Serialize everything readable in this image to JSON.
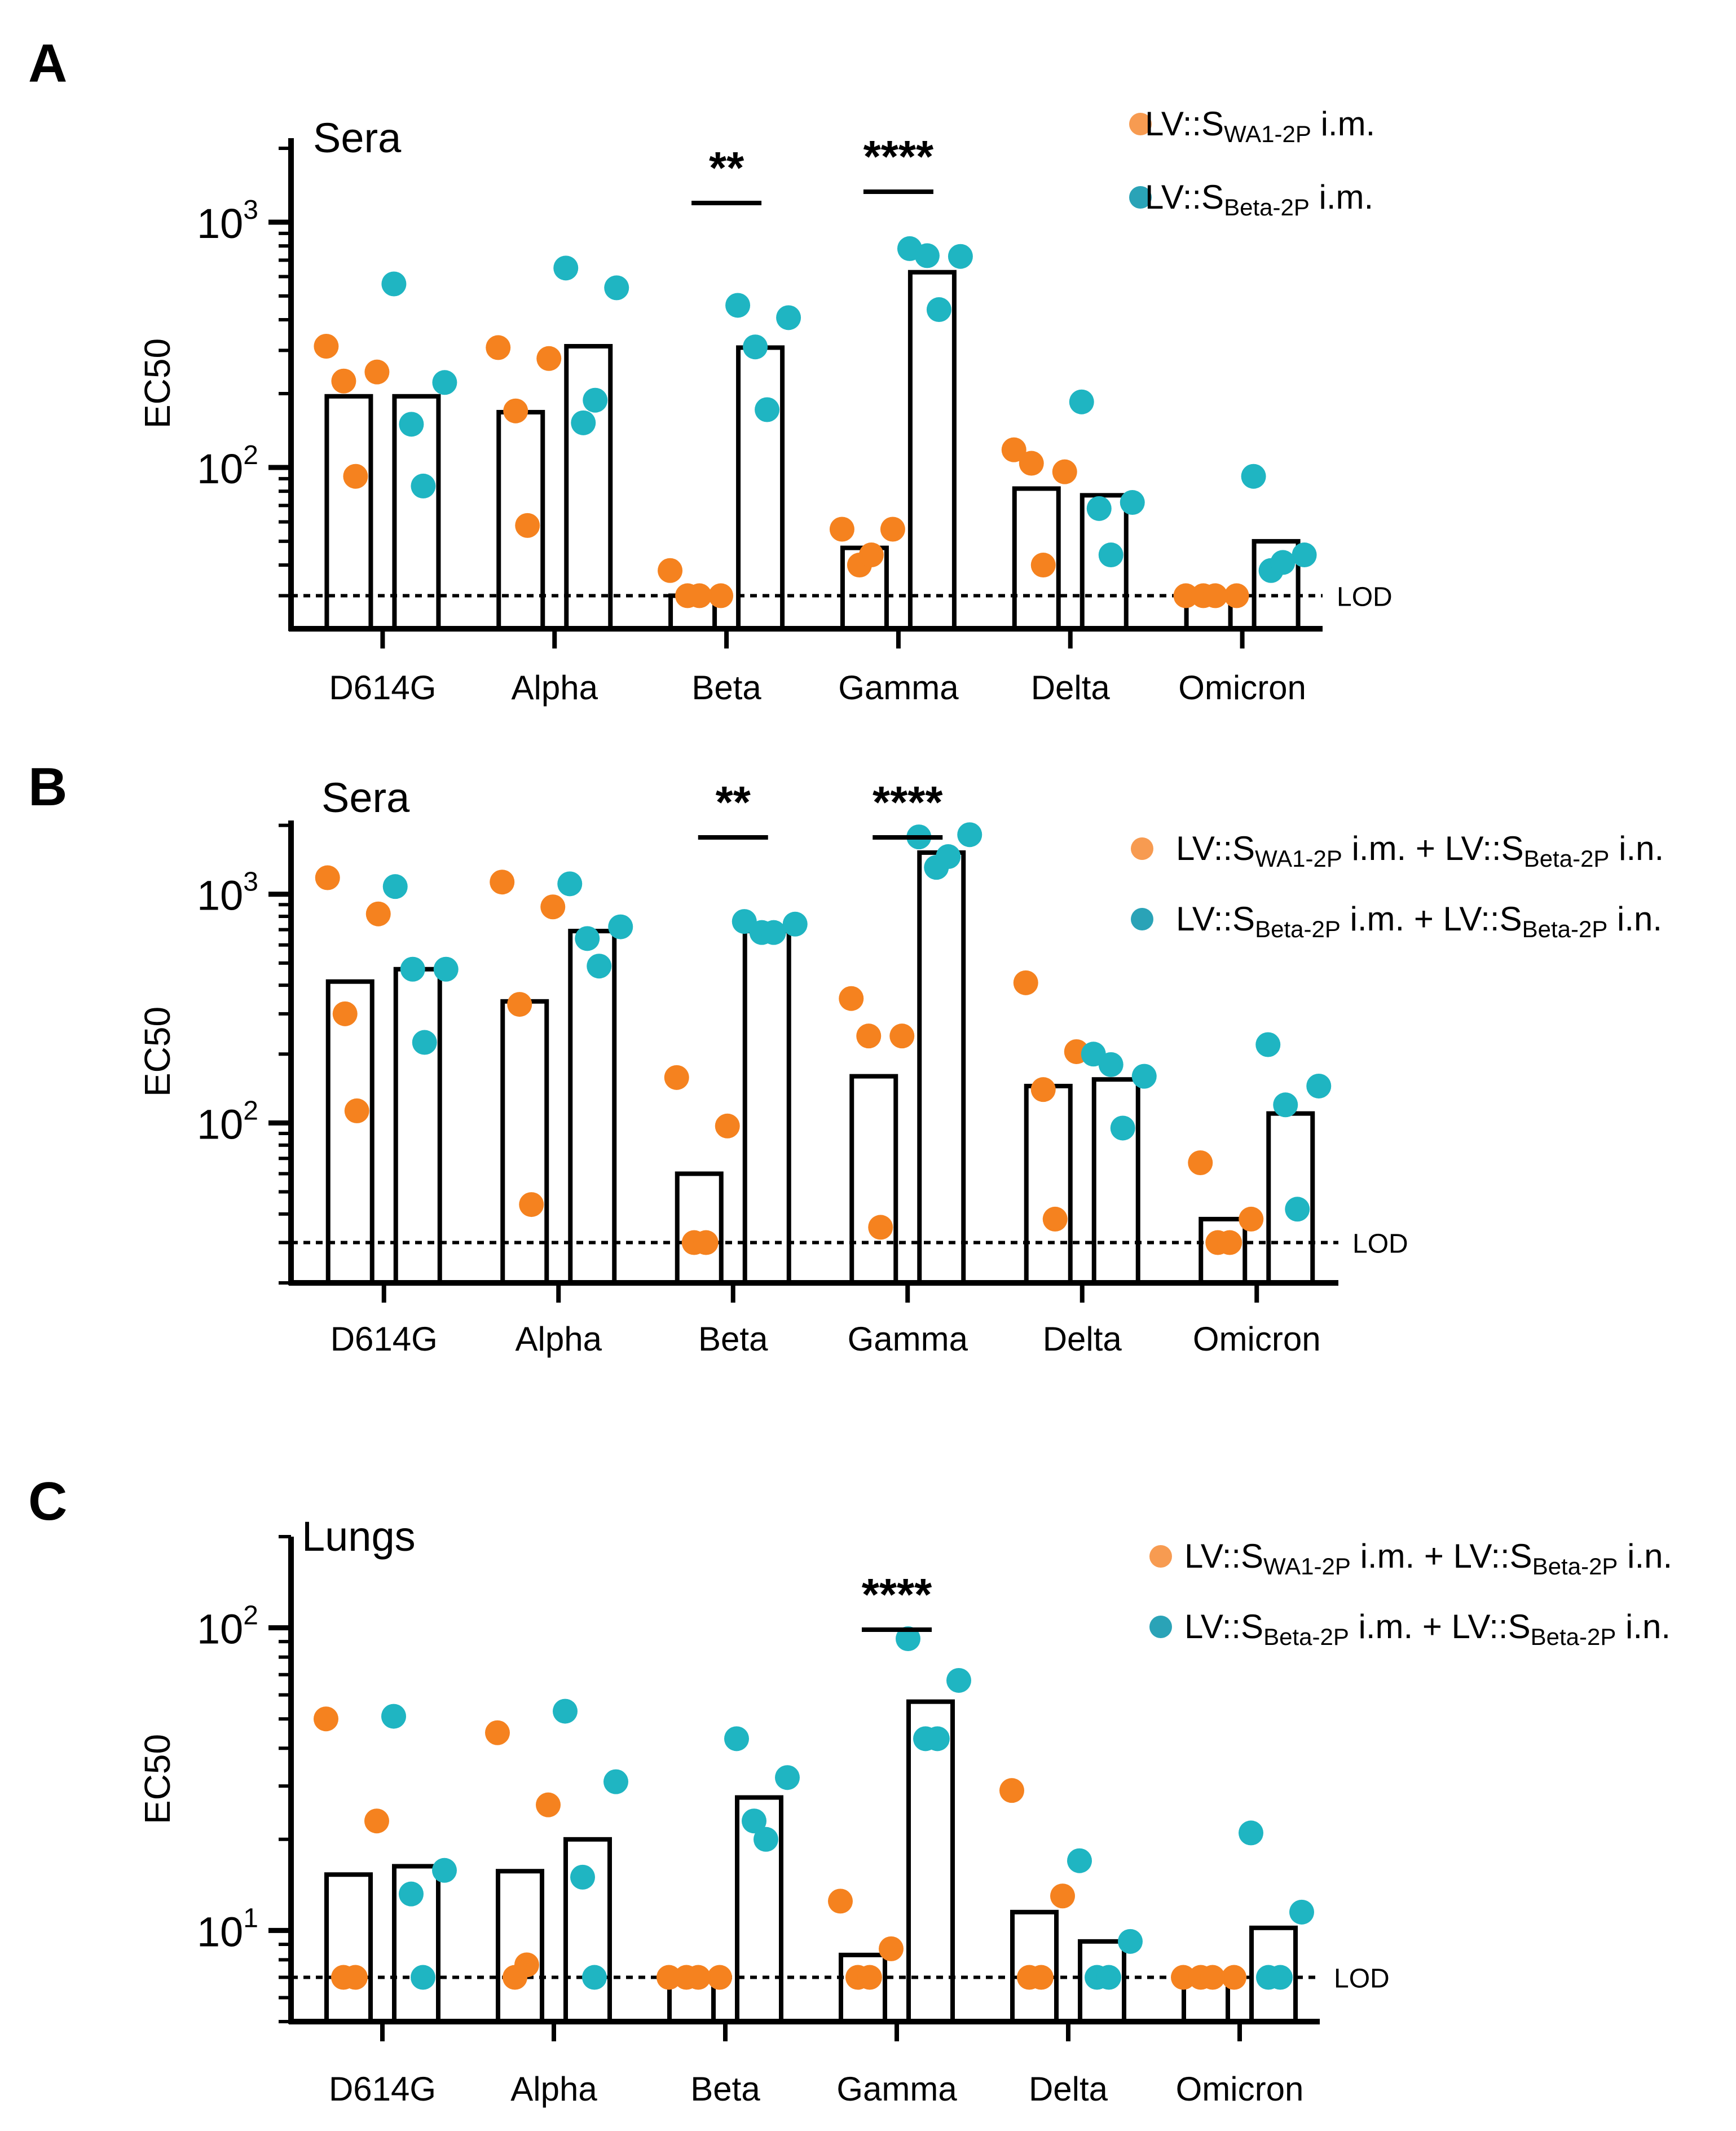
{
  "figure": {
    "colors": {
      "orange": "#F5821F",
      "teal": "#1FB5C2",
      "axis": "#000000",
      "bar_fill": "#FFFFFF"
    },
    "lod_label": "LOD",
    "ylabel": "EC50",
    "legend_marker_colors": [
      "#F79B51",
      "#2AA3B7"
    ]
  },
  "chart_data": [
    {
      "panel": "A",
      "type": "bar",
      "title": "Sera",
      "ylabel": "EC50",
      "yscale": "log",
      "ylim": [
        22,
        2200
      ],
      "yticks": [
        {
          "value": 100,
          "base": "10",
          "exp": "2"
        },
        {
          "value": 1000,
          "base": "10",
          "exp": "3"
        }
      ],
      "lod": 30,
      "categories": [
        "D614G",
        "Alpha",
        "Beta",
        "Gamma",
        "Delta",
        "Omicron"
      ],
      "series": [
        {
          "name": "LV::SWA1-2P i.m.",
          "legend": {
            "prefix": "LV::S",
            "sub": "WA1-2P",
            "suffix": " i.m."
          },
          "color": "#F5821F",
          "bars": [
            195,
            168,
            30,
            47,
            82,
            30
          ],
          "points": [
            [
              312,
              245,
              225,
              92
            ],
            [
              308,
              278,
              170,
              58
            ],
            [
              38,
              30,
              30,
              30
            ],
            [
              56,
              56,
              40,
              44
            ],
            [
              118,
              96,
              104,
              40
            ],
            [
              30,
              30,
              30,
              30
            ]
          ]
        },
        {
          "name": "LV::SBeta-2P i.m.",
          "legend": {
            "prefix": "LV::S",
            "sub": "Beta-2P",
            "suffix": " i.m."
          },
          "color": "#1FB5C2",
          "bars": [
            195,
            312,
            308,
            625,
            77,
            50
          ],
          "points": [
            [
              560,
              222,
              150,
              84
            ],
            [
              650,
              540,
              152,
              188
            ],
            [
              458,
              408,
              310,
              172
            ],
            [
              780,
              725,
              730,
              440
            ],
            [
              185,
              72,
              68,
              44
            ],
            [
              92,
              44,
              38,
              41
            ]
          ]
        }
      ],
      "significance": [
        {
          "category": "Beta",
          "label": "**"
        },
        {
          "category": "Gamma",
          "label": "****"
        }
      ]
    },
    {
      "panel": "B",
      "type": "bar",
      "title": "Sera",
      "ylabel": "EC50",
      "yscale": "log",
      "ylim": [
        20,
        2100
      ],
      "yticks": [
        {
          "value": 100,
          "base": "10",
          "exp": "2"
        },
        {
          "value": 1000,
          "base": "10",
          "exp": "3"
        }
      ],
      "lod": 30,
      "categories": [
        "D614G",
        "Alpha",
        "Beta",
        "Gamma",
        "Delta",
        "Omicron"
      ],
      "series": [
        {
          "name": "LV::SWA1-2P i.m. + LV::SBeta-2P i.n.",
          "legend": {
            "prefix": "LV::S",
            "sub": "WA1-2P",
            "mid": " i.m. + LV::S",
            "sub2": "Beta-2P",
            "suffix": " i.n."
          },
          "color": "#F5821F",
          "bars": [
            415,
            340,
            60,
            160,
            145,
            38
          ],
          "points": [
            [
              1180,
              820,
              300,
              113
            ],
            [
              1130,
              880,
              330,
              44
            ],
            [
              158,
              97,
              30,
              30
            ],
            [
              350,
              240,
              240,
              35
            ],
            [
              410,
              205,
              140,
              38
            ],
            [
              67,
              38,
              30,
              30
            ]
          ]
        },
        {
          "name": "LV::SBeta-2P i.m. + LV::SBeta-2P i.n.",
          "legend": {
            "prefix": "LV::S",
            "sub": "Beta-2P",
            "mid": " i.m. + LV::S",
            "sub2": "Beta-2P",
            "suffix": " i.n."
          },
          "color": "#1FB5C2",
          "bars": [
            470,
            690,
            690,
            1520,
            155,
            110
          ],
          "points": [
            [
              1080,
              470,
              470,
              225
            ],
            [
              1110,
              720,
              640,
              485
            ],
            [
              760,
              740,
              680,
              680
            ],
            [
              1780,
              1820,
              1310,
              1460
            ],
            [
              200,
              160,
              180,
              95
            ],
            [
              220,
              145,
              120,
              42
            ]
          ]
        }
      ],
      "significance": [
        {
          "category": "Beta",
          "label": "**"
        },
        {
          "category": "Gamma",
          "label": "****"
        }
      ]
    },
    {
      "panel": "C",
      "type": "bar",
      "title": "Lungs",
      "ylabel": "EC50",
      "yscale": "log",
      "ylim": [
        5,
        200
      ],
      "yticks": [
        {
          "value": 10,
          "base": "10",
          "exp": "1"
        },
        {
          "value": 100,
          "base": "10",
          "exp": "2"
        }
      ],
      "lod": 7,
      "categories": [
        "D614G",
        "Alpha",
        "Beta",
        "Gamma",
        "Delta",
        "Omicron"
      ],
      "series": [
        {
          "name": "LV::SWA1-2P i.m. + LV::SBeta-2P i.n.",
          "legend": {
            "prefix": "LV::S",
            "sub": "WA1-2P",
            "mid": " i.m. + LV::S",
            "sub2": "Beta-2P",
            "suffix": " i.n."
          },
          "color": "#F5821F",
          "bars": [
            15.3,
            15.7,
            7,
            8.3,
            11.5,
            7
          ],
          "points": [
            [
              50,
              23,
              7,
              7
            ],
            [
              45,
              26,
              7,
              7.7
            ],
            [
              7,
              7,
              7,
              7
            ],
            [
              12.5,
              8.7,
              7,
              7
            ],
            [
              29,
              13,
              7,
              7
            ],
            [
              7,
              7,
              7,
              7
            ]
          ]
        },
        {
          "name": "LV::SBeta-2P i.m. + LV::SBeta-2P i.n.",
          "legend": {
            "prefix": "LV::S",
            "sub": "Beta-2P",
            "mid": " i.m. + LV::S",
            "sub2": "Beta-2P",
            "suffix": " i.n."
          },
          "color": "#1FB5C2",
          "bars": [
            16.3,
            20,
            27.5,
            57,
            9.2,
            10.2
          ],
          "points": [
            [
              51,
              15.8,
              13.2,
              7
            ],
            [
              53,
              31,
              15,
              7
            ],
            [
              43,
              32,
              23,
              20
            ],
            [
              92,
              67,
              43,
              43
            ],
            [
              17,
              9.2,
              7,
              7
            ],
            [
              21,
              11.5,
              7,
              7
            ]
          ]
        }
      ],
      "significance": [
        {
          "category": "Gamma",
          "label": "****"
        }
      ]
    }
  ]
}
